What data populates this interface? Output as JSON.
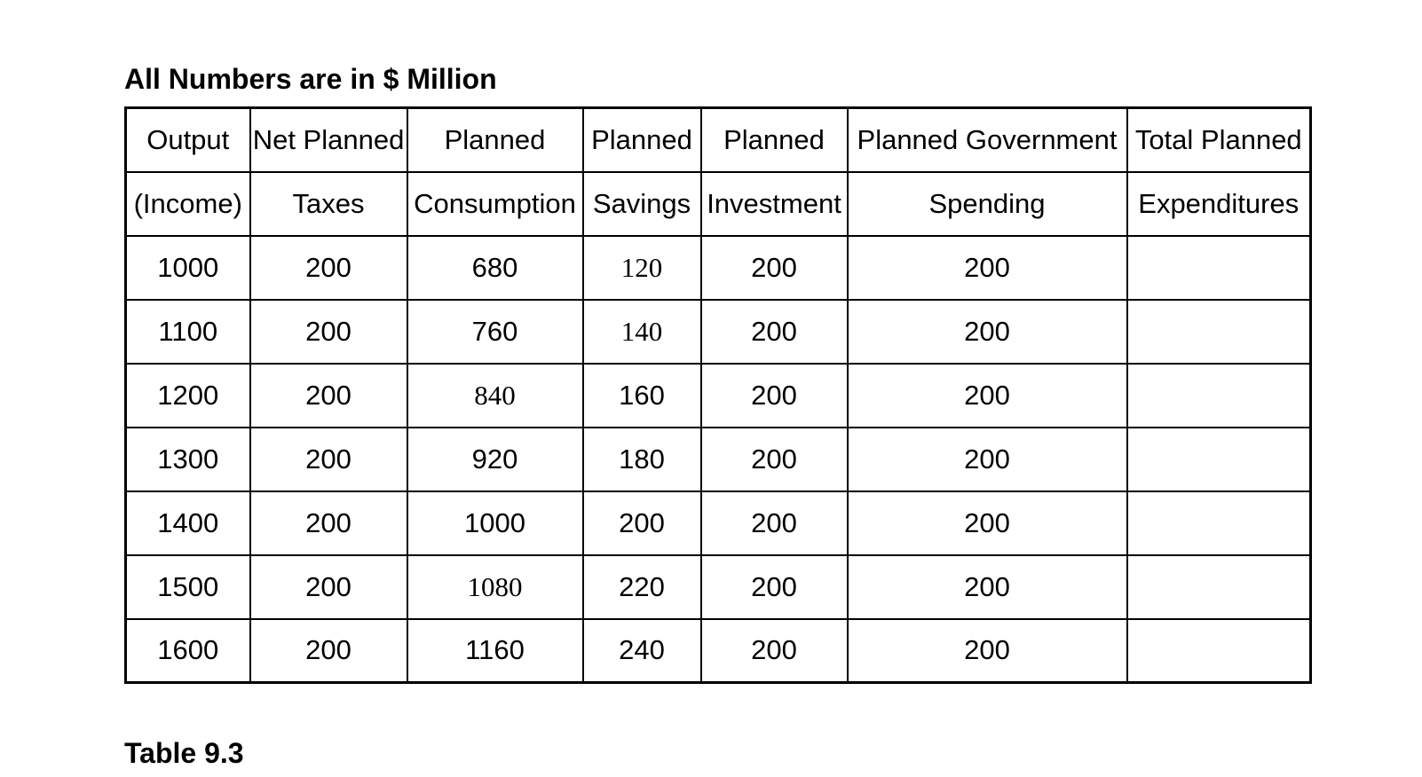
{
  "units_note": "All Numbers are in $ Million",
  "caption": "Table 9.3",
  "colors": {
    "text": "#000000",
    "border": "#000000",
    "background": "#ffffff"
  },
  "table": {
    "columns": [
      {
        "line1": "Output",
        "line2": "(Income)"
      },
      {
        "line1": "Net Planned",
        "line2": "Taxes"
      },
      {
        "line1": "Planned",
        "line2": "Consumption"
      },
      {
        "line1": "Planned",
        "line2": "Savings"
      },
      {
        "line1": "Planned",
        "line2": "Investment"
      },
      {
        "line1": "Planned Government",
        "line2": "Spending"
      },
      {
        "line1": "Total Planned",
        "line2": "Expenditures"
      }
    ],
    "rows": [
      [
        "1000",
        "200",
        "680",
        "120",
        "200",
        "200",
        ""
      ],
      [
        "1100",
        "200",
        "760",
        "140",
        "200",
        "200",
        ""
      ],
      [
        "1200",
        "200",
        "840",
        "160",
        "200",
        "200",
        ""
      ],
      [
        "1300",
        "200",
        "920",
        "180",
        "200",
        "200",
        ""
      ],
      [
        "1400",
        "200",
        "1000",
        "200",
        "200",
        "200",
        ""
      ],
      [
        "1500",
        "200",
        "1080",
        "220",
        "200",
        "200",
        ""
      ],
      [
        "1600",
        "200",
        "1160",
        "240",
        "200",
        "200",
        ""
      ]
    ],
    "serif_cells": [
      [
        0,
        3
      ],
      [
        1,
        3
      ],
      [
        2,
        2
      ],
      [
        5,
        2
      ]
    ]
  }
}
